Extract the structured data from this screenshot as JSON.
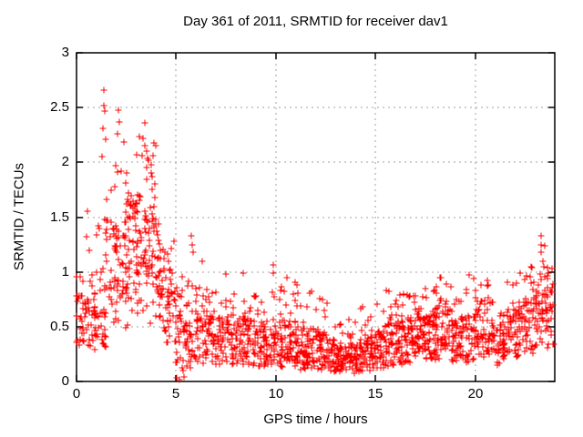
{
  "window": {
    "background": "#ffffff",
    "text_color": "#000000"
  },
  "chart_data": {
    "type": "scatter",
    "title": "Day 361 of 2011, SRMTID for receiver dav1",
    "xlabel": "GPS time / hours",
    "ylabel": "SRMTID / TECUs",
    "xlim": [
      0,
      24
    ],
    "ylim": [
      0,
      3
    ],
    "xtick_values": [
      0,
      5,
      10,
      15,
      20
    ],
    "xtick_labels": [
      "0",
      "5",
      "10",
      "15",
      "20"
    ],
    "ytick_values": [
      0,
      0.5,
      1,
      1.5,
      2,
      2.5,
      3
    ],
    "ytick_labels": [
      "0",
      "0.5",
      "1",
      "1.5",
      "2",
      "2.5",
      "3"
    ],
    "grid": true,
    "grid_style": "dashed",
    "grid_color": "#a0a0a0",
    "axis_color": "#000000",
    "legend": "none",
    "marker": {
      "shape": "plus",
      "color": "#ff0000",
      "size": 7
    },
    "seed": 2011361,
    "bin_columns": [
      "x_start",
      "x_end",
      "count",
      "y_min",
      "y_max",
      "core_min",
      "core_max"
    ],
    "density_bins": [
      [
        0.0,
        0.5,
        30,
        0.3,
        1.0,
        0.38,
        0.78
      ],
      [
        0.5,
        1.0,
        32,
        0.28,
        1.0,
        0.4,
        0.8
      ],
      [
        1.0,
        1.5,
        34,
        0.3,
        1.6,
        0.45,
        1.0
      ],
      [
        1.5,
        2.0,
        36,
        0.35,
        1.95,
        0.55,
        1.45
      ],
      [
        2.0,
        2.5,
        40,
        0.45,
        2.2,
        0.75,
        1.55
      ],
      [
        2.5,
        3.0,
        42,
        0.5,
        1.9,
        0.85,
        1.6
      ],
      [
        3.0,
        3.5,
        45,
        0.55,
        2.3,
        1.0,
        1.75
      ],
      [
        3.5,
        4.0,
        45,
        0.5,
        2.2,
        0.95,
        1.7
      ],
      [
        4.0,
        4.5,
        38,
        0.45,
        1.5,
        0.6,
        1.2
      ],
      [
        4.5,
        5.0,
        36,
        0.35,
        1.3,
        0.5,
        1.0
      ],
      [
        5.0,
        5.5,
        34,
        0.02,
        1.0,
        0.3,
        0.75
      ],
      [
        5.5,
        6.0,
        34,
        0.12,
        1.33,
        0.25,
        0.7
      ],
      [
        6.0,
        6.5,
        36,
        0.15,
        1.1,
        0.25,
        0.62
      ],
      [
        6.5,
        7.0,
        36,
        0.15,
        1.0,
        0.25,
        0.6
      ],
      [
        7.0,
        7.5,
        36,
        0.15,
        0.98,
        0.24,
        0.58
      ],
      [
        7.5,
        8.0,
        36,
        0.15,
        0.9,
        0.22,
        0.55
      ],
      [
        8.0,
        8.5,
        38,
        0.15,
        1.05,
        0.25,
        0.6
      ],
      [
        8.5,
        9.0,
        38,
        0.14,
        0.9,
        0.22,
        0.55
      ],
      [
        9.0,
        9.5,
        38,
        0.13,
        0.85,
        0.2,
        0.5
      ],
      [
        9.5,
        10.0,
        38,
        0.13,
        1.06,
        0.2,
        0.55
      ],
      [
        10.0,
        10.5,
        38,
        0.13,
        0.95,
        0.2,
        0.52
      ],
      [
        10.5,
        11.0,
        40,
        0.12,
        0.95,
        0.2,
        0.55
      ],
      [
        11.0,
        11.5,
        40,
        0.11,
        0.88,
        0.18,
        0.5
      ],
      [
        11.5,
        12.0,
        40,
        0.11,
        0.85,
        0.18,
        0.5
      ],
      [
        12.0,
        12.5,
        40,
        0.1,
        0.8,
        0.16,
        0.45
      ],
      [
        12.5,
        13.0,
        40,
        0.08,
        0.74,
        0.14,
        0.4
      ],
      [
        13.0,
        13.5,
        40,
        0.06,
        0.6,
        0.11,
        0.33
      ],
      [
        13.5,
        14.0,
        40,
        0.06,
        0.62,
        0.11,
        0.32
      ],
      [
        14.0,
        14.5,
        40,
        0.08,
        0.68,
        0.14,
        0.38
      ],
      [
        14.5,
        15.0,
        40,
        0.1,
        0.72,
        0.16,
        0.42
      ],
      [
        15.0,
        15.5,
        40,
        0.12,
        0.78,
        0.18,
        0.46
      ],
      [
        15.5,
        16.0,
        40,
        0.14,
        0.88,
        0.2,
        0.52
      ],
      [
        16.0,
        16.5,
        42,
        0.15,
        0.82,
        0.22,
        0.55
      ],
      [
        16.5,
        17.0,
        42,
        0.16,
        0.85,
        0.24,
        0.58
      ],
      [
        17.0,
        17.5,
        42,
        0.18,
        0.88,
        0.28,
        0.62
      ],
      [
        17.5,
        18.0,
        42,
        0.18,
        0.85,
        0.28,
        0.6
      ],
      [
        18.0,
        18.5,
        42,
        0.2,
        1.0,
        0.3,
        0.68
      ],
      [
        18.5,
        19.0,
        40,
        0.18,
        0.92,
        0.28,
        0.64
      ],
      [
        19.0,
        19.5,
        38,
        0.15,
        0.8,
        0.24,
        0.55
      ],
      [
        19.5,
        20.0,
        38,
        0.15,
        0.98,
        0.25,
        0.6
      ],
      [
        20.0,
        20.5,
        38,
        0.2,
        0.92,
        0.3,
        0.66
      ],
      [
        20.5,
        21.0,
        38,
        0.24,
        0.96,
        0.34,
        0.72
      ],
      [
        21.0,
        21.5,
        36,
        0.15,
        0.78,
        0.24,
        0.52
      ],
      [
        21.5,
        22.0,
        36,
        0.15,
        0.92,
        0.26,
        0.6
      ],
      [
        22.0,
        22.5,
        38,
        0.2,
        1.0,
        0.32,
        0.7
      ],
      [
        22.5,
        23.0,
        38,
        0.25,
        1.05,
        0.36,
        0.76
      ],
      [
        23.0,
        23.5,
        38,
        0.3,
        1.35,
        0.42,
        0.82
      ],
      [
        23.5,
        24.0,
        36,
        0.3,
        1.05,
        0.45,
        0.85
      ]
    ],
    "outliers": [
      [
        0.55,
        1.55
      ],
      [
        0.5,
        1.32
      ],
      [
        0.64,
        1.2
      ],
      [
        1.37,
        2.66
      ],
      [
        1.36,
        2.52
      ],
      [
        1.41,
        2.47
      ],
      [
        1.34,
        2.31
      ],
      [
        1.46,
        2.21
      ],
      [
        1.3,
        2.05
      ],
      [
        2.1,
        2.48
      ],
      [
        2.14,
        2.37
      ],
      [
        2.06,
        2.26
      ],
      [
        1.95,
        1.97
      ],
      [
        2.22,
        1.92
      ],
      [
        3.43,
        2.36
      ],
      [
        3.35,
        2.22
      ],
      [
        3.42,
        2.15
      ],
      [
        3.52,
        2.1
      ],
      [
        3.3,
        2.06
      ],
      [
        3.62,
        2.02
      ],
      [
        3.76,
        1.98
      ],
      [
        3.9,
        2.18
      ],
      [
        3.85,
        2.06
      ],
      [
        5.03,
        0.03
      ],
      [
        5.18,
        0.02
      ],
      [
        5.4,
        0.04
      ],
      [
        5.78,
        1.33
      ],
      [
        5.8,
        1.25
      ],
      [
        5.83,
        1.18
      ],
      [
        6.3,
        1.1
      ],
      [
        7.5,
        0.98
      ],
      [
        9.87,
        1.06
      ],
      [
        9.88,
        0.99
      ],
      [
        10.56,
        0.95
      ],
      [
        11.07,
        0.88
      ],
      [
        16.4,
        0.8
      ],
      [
        17.5,
        0.85
      ],
      [
        18.3,
        0.95
      ],
      [
        19.7,
        0.97
      ],
      [
        20.6,
        0.92
      ],
      [
        22.1,
        0.9
      ],
      [
        22.8,
        1.05
      ],
      [
        23.3,
        1.33
      ],
      [
        23.33,
        1.25
      ],
      [
        23.3,
        1.18
      ],
      [
        23.4,
        1.1
      ],
      [
        23.45,
        1.05
      ],
      [
        23.25,
        0.98
      ]
    ]
  }
}
